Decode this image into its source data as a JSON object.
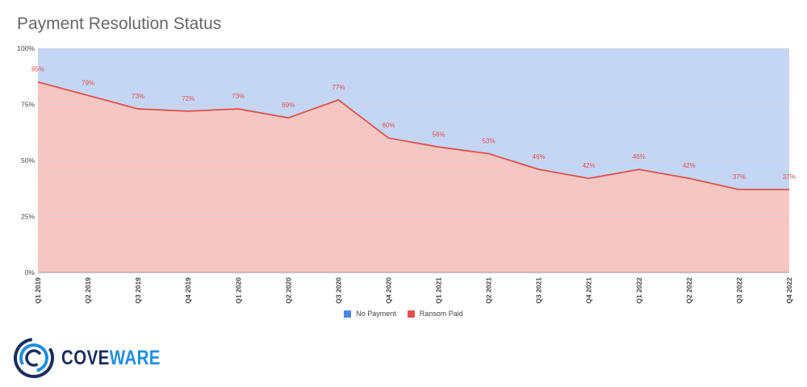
{
  "title": "Payment Resolution Status",
  "chart_data": {
    "type": "area",
    "stacked": true,
    "percent": true,
    "categories": [
      "Q1 2019",
      "Q2 2019",
      "Q3 2019",
      "Q4 2019",
      "Q1 2020",
      "Q2 2020",
      "Q3 2020",
      "Q4 2020",
      "Q1 2021",
      "Q2 2021",
      "Q3 2021",
      "Q4 2021",
      "Q1 2022",
      "Q2 2022",
      "Q3 2022",
      "Q4 2022"
    ],
    "series": [
      {
        "name": "No Payment",
        "color": "#c5d6f4",
        "legend_color": "#4a86e8",
        "values": [
          15,
          21,
          27,
          28,
          27,
          31,
          23,
          40,
          44,
          47,
          54,
          58,
          54,
          58,
          63,
          63
        ]
      },
      {
        "name": "Ransom Paid",
        "color": "#f6c6c3",
        "line_color": "#e0504a",
        "values": [
          85,
          79,
          73,
          72,
          73,
          69,
          77,
          60,
          56,
          53,
          46,
          42,
          46,
          42,
          37,
          37
        ]
      }
    ],
    "data_labels": [
      "85%",
      "79%",
      "73%",
      "72%",
      "73%",
      "69%",
      "77%",
      "60%",
      "56%",
      "53%",
      "46%",
      "42%",
      "46%",
      "42%",
      "37%",
      "37%"
    ],
    "y_ticks": [
      "0%",
      "25%",
      "50%",
      "75%",
      "100%"
    ],
    "ylim": [
      0,
      100
    ],
    "grid": true,
    "legend_position": "bottom"
  },
  "logo": {
    "text_a": "COVE",
    "text_b": "WARE"
  }
}
